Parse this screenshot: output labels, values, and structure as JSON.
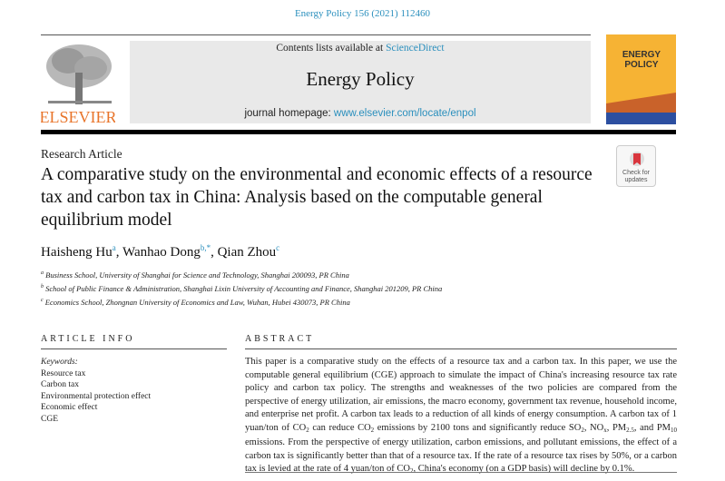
{
  "header": {
    "journal_ref": "Energy Policy 156 (2021) 112460"
  },
  "banner": {
    "contents_prefix": "Contents lists available at ",
    "contents_link": "ScienceDirect",
    "journal_name": "Energy Policy",
    "homepage_prefix": "journal homepage: ",
    "homepage_link": "www.elsevier.com/locate/enpol"
  },
  "publisher_logo": {
    "text": "ELSEVIER"
  },
  "cover": {
    "title_line1": "ENERGY",
    "title_line2": "POLICY"
  },
  "colors": {
    "link": "#2a8fbd",
    "elsevier": "#e8742a",
    "cover_yellow": "#f6b334",
    "cover_orange": "#c9622a",
    "cover_blue": "#2c4fa0"
  },
  "article": {
    "type": "Research Article",
    "title": "A comparative study on the environmental and economic effects of a resource tax and carbon tax in China: Analysis based on the computable general equilibrium model",
    "check_updates": {
      "line1": "Check for",
      "line2": "updates"
    },
    "authors": [
      {
        "name": "Haisheng Hu",
        "sup": "a"
      },
      {
        "name": "Wanhao Dong",
        "sup": "b,*"
      },
      {
        "name": "Qian Zhou",
        "sup": "c"
      }
    ],
    "affiliations": [
      {
        "sup": "a",
        "text": "Business School, University of Shanghai for Science and Technology, Shanghai 200093, PR China"
      },
      {
        "sup": "b",
        "text": "School of Public Finance & Administration, Shanghai Lixin University of Accounting and Finance, Shanghai 201209, PR China"
      },
      {
        "sup": "c",
        "text": "Economics School, Zhongnan University of Economics and Law, Wuhan, Hubei 430073, PR China"
      }
    ]
  },
  "article_info": {
    "heading": "ARTICLE INFO",
    "keywords_label": "Keywords:",
    "keywords": [
      "Resource tax",
      "Carbon tax",
      "Environmental protection effect",
      "Economic effect",
      "CGE"
    ]
  },
  "abstract": {
    "heading": "ABSTRACT",
    "segments": [
      "This paper is a comparative study on the effects of a resource tax and a carbon tax. In this paper, we use the computable general equilibrium (CGE) approach to simulate the impact of China's increasing resource tax rate policy and carbon tax policy. The strengths and weaknesses of the two policies are compared from the perspective of energy utilization, air emissions, the macro economy, government tax revenue, household income, and enterprise net profit. A carbon tax leads to a reduction of all kinds of energy consumption. A carbon tax of 1 yuan/ton of CO",
      "2",
      " can reduce CO",
      "2",
      " emissions by 2100 tons and significantly reduce SO",
      "2",
      ", NO",
      "x",
      ", PM",
      "2.5",
      ", and PM",
      "10",
      " emissions. From the perspective of energy utilization, carbon emissions, and pollutant emissions, the effect of a carbon tax is significantly better than that of a resource tax. If the rate of a resource tax rises by 50%, or a carbon tax is levied at the rate of 4 yuan/ton of CO",
      "2",
      ", China's economy (on a GDP basis) will decline by 0.1%."
    ]
  }
}
